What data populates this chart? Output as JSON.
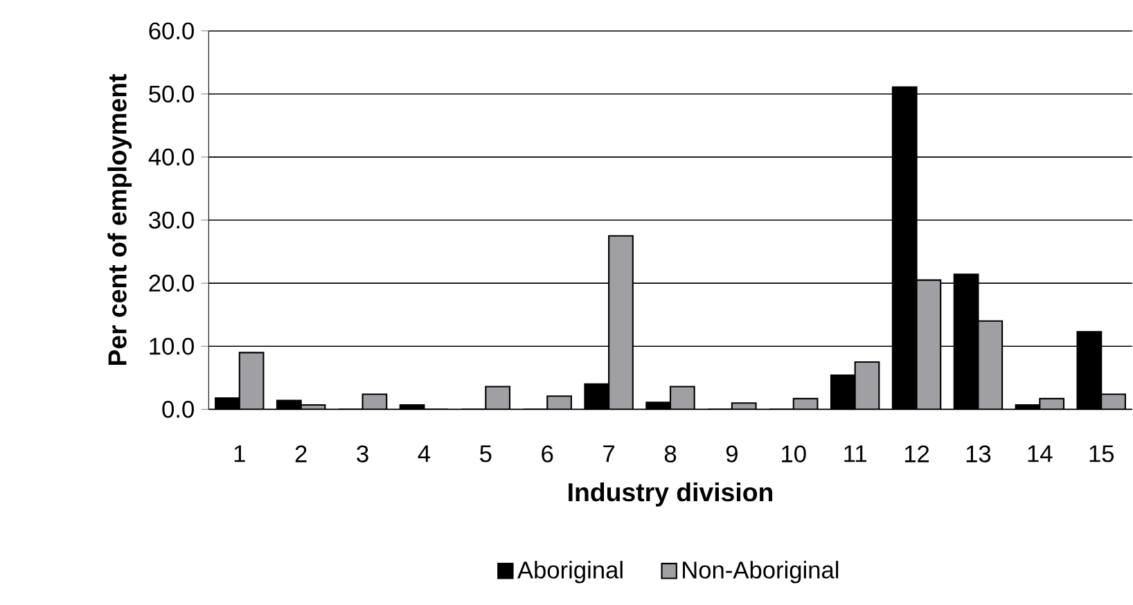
{
  "chart_data": {
    "type": "bar",
    "xlabel": "Industry division",
    "ylabel": "Per cent of employment",
    "categories": [
      "1",
      "2",
      "3",
      "4",
      "5",
      "6",
      "7",
      "8",
      "9",
      "10",
      "11",
      "12",
      "13",
      "14",
      "15"
    ],
    "series": [
      {
        "name": "Aboriginal",
        "color": "#000000",
        "values": [
          1.8,
          1.4,
          0,
          0.7,
          0,
          0,
          4.0,
          1.1,
          0,
          0,
          5.4,
          51.1,
          21.4,
          0.7,
          12.3
        ]
      },
      {
        "name": "Non-Aboriginal",
        "color": "#a0a0a4",
        "values": [
          9.0,
          0.7,
          2.4,
          0,
          3.6,
          2.1,
          27.5,
          3.6,
          1.0,
          1.7,
          7.5,
          20.5,
          14.0,
          1.7,
          2.4
        ]
      }
    ],
    "ylim": [
      0,
      60
    ],
    "yticks": [
      {
        "value": 0,
        "label": "0.0"
      },
      {
        "value": 10,
        "label": "10.0"
      },
      {
        "value": 20,
        "label": "20.0"
      },
      {
        "value": 30,
        "label": "30.0"
      },
      {
        "value": 40,
        "label": "40.0"
      },
      {
        "value": 50,
        "label": "50.0"
      },
      {
        "value": 60,
        "label": "60.0"
      }
    ],
    "grid": "y",
    "legend": "bottom"
  }
}
